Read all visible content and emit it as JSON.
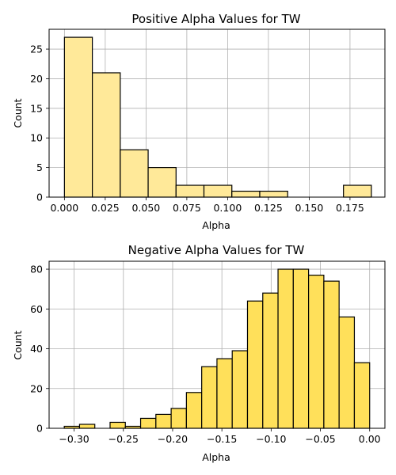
{
  "chart_data": [
    {
      "type": "histogram",
      "title": "Positive Alpha Values for TW",
      "xlabel": "Alpha",
      "ylabel": "Count",
      "xlim": [
        -0.0094,
        0.1964
      ],
      "ylim": [
        0,
        28.35
      ],
      "xticks": [
        0.0,
        0.025,
        0.05,
        0.075,
        0.1,
        0.125,
        0.15,
        0.175
      ],
      "xtick_labels": [
        "0.000",
        "0.025",
        "0.050",
        "0.075",
        "0.100",
        "0.125",
        "0.150",
        "0.175"
      ],
      "yticks": [
        0,
        5,
        10,
        15,
        20,
        25
      ],
      "ytick_labels": [
        "0",
        "5",
        "10",
        "15",
        "20",
        "25"
      ],
      "grid": true,
      "bar_color": "#FFE999",
      "edge_color": "#000000",
      "bins": [
        {
          "x0": 0.0,
          "x1": 0.0171,
          "count": 27
        },
        {
          "x0": 0.0171,
          "x1": 0.0342,
          "count": 21
        },
        {
          "x0": 0.0342,
          "x1": 0.0513,
          "count": 8
        },
        {
          "x0": 0.0513,
          "x1": 0.0684,
          "count": 5
        },
        {
          "x0": 0.0684,
          "x1": 0.0855,
          "count": 2
        },
        {
          "x0": 0.0855,
          "x1": 0.1026,
          "count": 2
        },
        {
          "x0": 0.1026,
          "x1": 0.1197,
          "count": 1
        },
        {
          "x0": 0.1197,
          "x1": 0.1368,
          "count": 1
        },
        {
          "x0": 0.1368,
          "x1": 0.1539,
          "count": 0
        },
        {
          "x0": 0.1539,
          "x1": 0.171,
          "count": 0
        },
        {
          "x0": 0.171,
          "x1": 0.1881,
          "count": 2
        }
      ]
    },
    {
      "type": "histogram",
      "title": "Negative Alpha Values for TW",
      "xlabel": "Alpha",
      "ylabel": "Count",
      "xlim": [
        -0.3254,
        0.0155
      ],
      "ylim": [
        0,
        84
      ],
      "xticks": [
        -0.3,
        -0.25,
        -0.2,
        -0.15,
        -0.1,
        -0.05,
        0.0
      ],
      "xtick_labels": [
        "−0.30",
        "−0.25",
        "−0.20",
        "−0.15",
        "−0.10",
        "−0.05",
        "0.00"
      ],
      "yticks": [
        0,
        20,
        40,
        60,
        80
      ],
      "ytick_labels": [
        "0",
        "20",
        "40",
        "60",
        "80"
      ],
      "grid": true,
      "bar_color": "#FFE05A",
      "edge_color": "#000000",
      "bins": [
        {
          "x0": -0.31,
          "x1": -0.2945,
          "count": 1
        },
        {
          "x0": -0.2945,
          "x1": -0.279,
          "count": 2
        },
        {
          "x0": -0.279,
          "x1": -0.2635,
          "count": 0
        },
        {
          "x0": -0.2635,
          "x1": -0.248,
          "count": 3
        },
        {
          "x0": -0.248,
          "x1": -0.2325,
          "count": 1
        },
        {
          "x0": -0.2325,
          "x1": -0.217,
          "count": 5
        },
        {
          "x0": -0.217,
          "x1": -0.2015,
          "count": 7
        },
        {
          "x0": -0.2015,
          "x1": -0.186,
          "count": 10
        },
        {
          "x0": -0.186,
          "x1": -0.1705,
          "count": 18
        },
        {
          "x0": -0.1705,
          "x1": -0.155,
          "count": 31
        },
        {
          "x0": -0.155,
          "x1": -0.1395,
          "count": 35
        },
        {
          "x0": -0.1395,
          "x1": -0.124,
          "count": 39
        },
        {
          "x0": -0.124,
          "x1": -0.1085,
          "count": 64
        },
        {
          "x0": -0.1085,
          "x1": -0.093,
          "count": 68
        },
        {
          "x0": -0.093,
          "x1": -0.0775,
          "count": 80
        },
        {
          "x0": -0.0775,
          "x1": -0.062,
          "count": 80
        },
        {
          "x0": -0.062,
          "x1": -0.0465,
          "count": 77
        },
        {
          "x0": -0.0465,
          "x1": -0.031,
          "count": 74
        },
        {
          "x0": -0.031,
          "x1": -0.0155,
          "count": 56
        },
        {
          "x0": -0.0155,
          "x1": 0.0,
          "count": 33
        }
      ]
    }
  ]
}
